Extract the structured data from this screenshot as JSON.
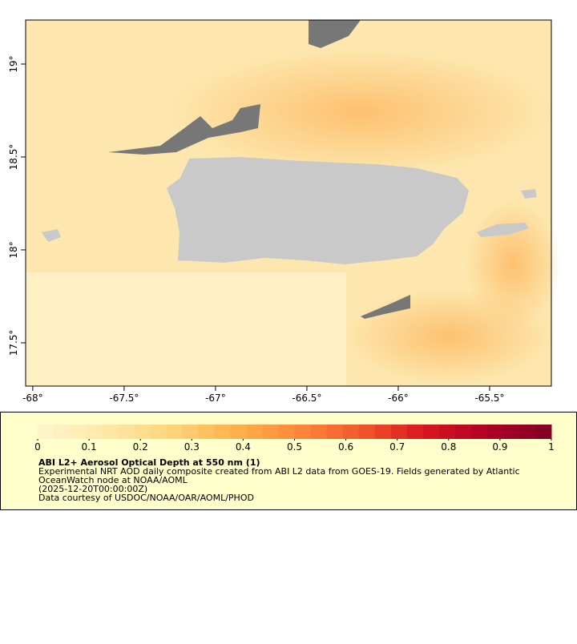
{
  "map": {
    "xlim": [
      -68.039,
      -65.162
    ],
    "ylim": [
      17.267,
      19.237
    ],
    "xticks": [
      {
        "value": -68,
        "label": "-68°"
      },
      {
        "value": -67.5,
        "label": "-67.5°"
      },
      {
        "value": -67,
        "label": "-67°"
      },
      {
        "value": -66.5,
        "label": "-66.5°"
      },
      {
        "value": -66,
        "label": "-66°"
      },
      {
        "value": -65.5,
        "label": "-65.5°"
      }
    ],
    "yticks": [
      {
        "value": 19,
        "label": "19°"
      },
      {
        "value": 18.5,
        "label": "18.5°"
      },
      {
        "value": 18,
        "label": "18°"
      },
      {
        "value": 17.5,
        "label": "17.5°"
      }
    ]
  },
  "colorbar": {
    "lim": [
      0,
      1
    ],
    "ticks": [
      0,
      0.1,
      0.2,
      0.3,
      0.4,
      0.5,
      0.6,
      0.7,
      0.8,
      0.9,
      1
    ],
    "colors": [
      "#fff5cc",
      "#ffe9a8",
      "#fed77f",
      "#feb44f",
      "#fd8b3c",
      "#f25a2d",
      "#d9171e",
      "#b00026",
      "#800026"
    ]
  },
  "caption": {
    "title": "ABI L2+ Aerosol Optical Depth at 550 nm (1)",
    "lines": [
      "Experimental NRT AOD daily composite created from ABI L2 data from GOES-19. Fields generated by Atlantic",
      "OceanWatch node at NOAA/AOML",
      "(2025-12-20T00:00:00Z)",
      "Data courtesy of USDOC/NOAA/OAR/AOML/PHOD"
    ]
  }
}
